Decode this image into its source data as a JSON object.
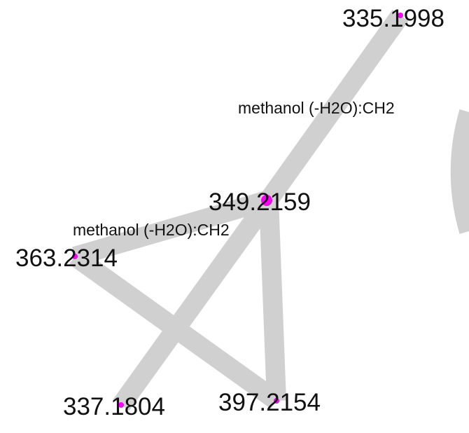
{
  "nodes": [
    {
      "id": "n335",
      "label": "335.1998",
      "color": "#ff00ff"
    },
    {
      "id": "n349",
      "label": "349.2159",
      "color": "#ff00ff"
    },
    {
      "id": "n363",
      "label": "363.2314",
      "color": "#ff00ff"
    },
    {
      "id": "n337",
      "label": "337.1804",
      "color": "#ff00ff"
    },
    {
      "id": "n397",
      "label": "397.2154",
      "color": "#ff00ff"
    }
  ],
  "edges": [
    {
      "id": "e1",
      "from": "n335",
      "to": "n349",
      "label": "methanol (-H2O):CH2"
    },
    {
      "id": "e2",
      "from": "n349",
      "to": "n363",
      "label": "methanol (-H2O):CH2"
    },
    {
      "id": "e3",
      "from": "n349",
      "to": "n337",
      "label": ""
    },
    {
      "id": "e4",
      "from": "n349",
      "to": "n397",
      "label": ""
    },
    {
      "id": "e5",
      "from": "n363",
      "to": "n397",
      "label": ""
    }
  ],
  "edge_color": "#d0d0d0"
}
